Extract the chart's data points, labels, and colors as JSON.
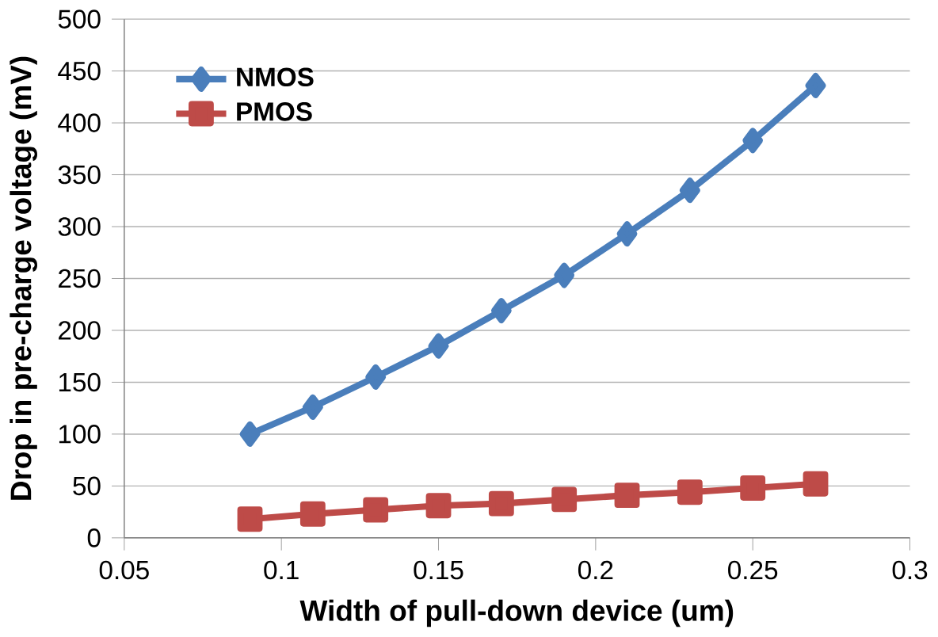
{
  "chart_data": {
    "type": "line",
    "xlabel": "Width of pull-down device (um)",
    "ylabel": "Drop in pre-charge voltage (mV)",
    "x": [
      0.09,
      0.11,
      0.13,
      0.15,
      0.17,
      0.19,
      0.21,
      0.23,
      0.25,
      0.27
    ],
    "series": [
      {
        "name": "NMOS",
        "color": "#4a7ebb",
        "marker": "diamond",
        "values": [
          100,
          126,
          155,
          185,
          219,
          253,
          293,
          335,
          383,
          436
        ]
      },
      {
        "name": "PMOS",
        "color": "#be4b48",
        "marker": "square",
        "values": [
          18,
          23,
          27,
          31,
          33,
          37,
          41,
          44,
          48,
          52
        ]
      }
    ],
    "xlim": [
      0.05,
      0.3
    ],
    "xticks": [
      0.05,
      0.1,
      0.15,
      0.2,
      0.25,
      0.3
    ],
    "ylim": [
      0,
      500
    ],
    "yticks": [
      0,
      50,
      100,
      150,
      200,
      250,
      300,
      350,
      400,
      450,
      500
    ],
    "grid": "y",
    "legend": "top left",
    "line_style": "solid"
  }
}
